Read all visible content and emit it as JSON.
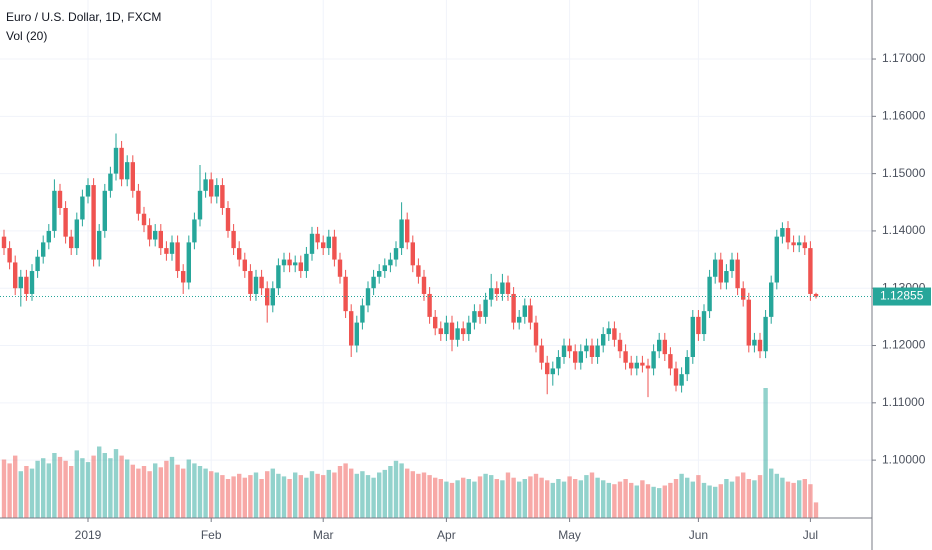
{
  "chart_data": {
    "type": "candlestick",
    "title": "Euro / U.S. Dollar, 1D, FXCM",
    "indicator": "Vol (20)",
    "categories": [
      null,
      null,
      null,
      null,
      null,
      null,
      null,
      null,
      null,
      null,
      null,
      null,
      null,
      null,
      null,
      "2019",
      null,
      null,
      null,
      null,
      null,
      null,
      null,
      null,
      null,
      null,
      null,
      null,
      null,
      null,
      null,
      null,
      null,
      null,
      null,
      null,
      null,
      "Feb",
      null,
      null,
      null,
      null,
      null,
      null,
      null,
      null,
      null,
      null,
      null,
      null,
      null,
      null,
      null,
      null,
      null,
      null,
      null,
      "Mar",
      null,
      null,
      null,
      null,
      null,
      null,
      null,
      null,
      null,
      null,
      null,
      null,
      null,
      null,
      null,
      null,
      null,
      null,
      null,
      null,
      null,
      "Apr",
      null,
      null,
      null,
      null,
      null,
      null,
      null,
      null,
      null,
      null,
      null,
      null,
      null,
      null,
      null,
      null,
      null,
      null,
      null,
      null,
      null,
      "May",
      null,
      null,
      null,
      null,
      null,
      null,
      null,
      null,
      null,
      null,
      null,
      null,
      null,
      null,
      null,
      null,
      null,
      null,
      null,
      null,
      null,
      null,
      "Jun",
      null,
      null,
      null,
      null,
      null,
      null,
      null,
      null,
      null,
      null,
      null,
      null,
      null,
      null,
      null,
      null,
      null,
      null,
      null,
      "Jul",
      null
    ],
    "open": [
      1.139,
      1.137,
      1.1345,
      1.13,
      1.132,
      1.129,
      1.133,
      1.1355,
      1.138,
      1.14,
      1.147,
      1.144,
      1.139,
      1.137,
      1.142,
      1.146,
      1.148,
      1.135,
      1.14,
      1.147,
      1.15,
      1.1545,
      1.149,
      1.152,
      1.147,
      1.143,
      1.141,
      1.1385,
      1.14,
      1.137,
      1.136,
      1.138,
      1.133,
      1.131,
      1.138,
      1.142,
      1.147,
      1.149,
      1.146,
      1.148,
      1.144,
      1.14,
      1.137,
      1.135,
      1.133,
      1.129,
      1.132,
      1.13,
      1.127,
      1.13,
      1.134,
      1.135,
      1.134,
      1.1345,
      1.133,
      1.136,
      1.1395,
      1.138,
      1.137,
      1.139,
      1.135,
      1.132,
      1.126,
      1.12,
      1.124,
      1.127,
      1.13,
      1.132,
      1.133,
      1.134,
      1.135,
      1.137,
      1.142,
      1.138,
      1.134,
      1.132,
      1.129,
      1.125,
      1.123,
      1.122,
      1.124,
      1.121,
      1.123,
      1.122,
      1.124,
      1.126,
      1.125,
      1.128,
      1.13,
      1.129,
      1.131,
      1.129,
      1.124,
      1.125,
      1.127,
      1.124,
      1.12,
      1.117,
      1.115,
      1.116,
      1.118,
      1.12,
      1.119,
      1.117,
      1.119,
      1.12,
      1.118,
      1.12,
      1.122,
      1.123,
      1.121,
      1.119,
      1.117,
      1.116,
      1.117,
      1.1165,
      1.116,
      1.119,
      1.121,
      1.1185,
      1.116,
      1.113,
      1.115,
      1.118,
      1.125,
      1.122,
      1.126,
      1.132,
      1.135,
      1.131,
      1.133,
      1.135,
      1.13,
      1.128,
      1.12,
      1.121,
      1.119,
      1.125,
      1.131,
      1.139,
      1.1405,
      1.138,
      1.1375,
      1.138,
      1.137,
      1.129
    ],
    "high": [
      1.1402,
      1.1382,
      1.1357,
      1.1332,
      1.1332,
      1.1342,
      1.1367,
      1.1392,
      1.1412,
      1.149,
      1.1482,
      1.1452,
      1.1402,
      1.1432,
      1.1472,
      1.1492,
      1.1492,
      1.1412,
      1.1482,
      1.1512,
      1.157,
      1.1557,
      1.1532,
      1.1532,
      1.1482,
      1.1442,
      1.1422,
      1.1412,
      1.1412,
      1.1382,
      1.1392,
      1.1392,
      1.1342,
      1.1392,
      1.1432,
      1.1515,
      1.1502,
      1.1502,
      1.1492,
      1.1492,
      1.1452,
      1.1412,
      1.1382,
      1.1362,
      1.1342,
      1.1332,
      1.1332,
      1.1312,
      1.1312,
      1.1352,
      1.1362,
      1.1362,
      1.1357,
      1.1357,
      1.1372,
      1.1407,
      1.1407,
      1.1392,
      1.1402,
      1.1402,
      1.1362,
      1.1332,
      1.1272,
      1.1252,
      1.1282,
      1.1312,
      1.1332,
      1.1342,
      1.1352,
      1.1362,
      1.1382,
      1.145,
      1.1432,
      1.1392,
      1.1352,
      1.1332,
      1.1302,
      1.1262,
      1.1242,
      1.1252,
      1.1252,
      1.1242,
      1.1242,
      1.1252,
      1.1272,
      1.1272,
      1.1292,
      1.1325,
      1.1312,
      1.1325,
      1.1322,
      1.1302,
      1.1262,
      1.1282,
      1.1282,
      1.1252,
      1.1212,
      1.1182,
      1.1172,
      1.1192,
      1.1212,
      1.1212,
      1.1202,
      1.1202,
      1.1212,
      1.1212,
      1.1212,
      1.1232,
      1.1242,
      1.1242,
      1.1222,
      1.1202,
      1.1182,
      1.1182,
      1.1182,
      1.1177,
      1.1202,
      1.1222,
      1.1222,
      1.1197,
      1.1172,
      1.1162,
      1.1192,
      1.1262,
      1.1262,
      1.1272,
      1.1332,
      1.1362,
      1.1362,
      1.1342,
      1.1362,
      1.1362,
      1.1312,
      1.1292,
      1.1222,
      1.1222,
      1.1262,
      1.1322,
      1.1402,
      1.1415,
      1.1417,
      1.1392,
      1.1392,
      1.1392,
      1.1382,
      1.1292
    ],
    "low": [
      1.1358,
      1.1333,
      1.1288,
      1.1268,
      1.1278,
      1.1278,
      1.1318,
      1.1343,
      1.1368,
      1.1388,
      1.1428,
      1.1378,
      1.1358,
      1.1358,
      1.1408,
      1.1448,
      1.1338,
      1.1338,
      1.1388,
      1.1458,
      1.1488,
      1.1478,
      1.1478,
      1.1458,
      1.1418,
      1.1398,
      1.1373,
      1.1373,
      1.1358,
      1.1348,
      1.1348,
      1.1318,
      1.129,
      1.1298,
      1.1368,
      1.1408,
      1.1458,
      1.1448,
      1.1448,
      1.1428,
      1.1388,
      1.1358,
      1.1338,
      1.1318,
      1.1278,
      1.1278,
      1.1288,
      1.124,
      1.1258,
      1.1288,
      1.1328,
      1.1328,
      1.1328,
      1.1318,
      1.1318,
      1.1348,
      1.1368,
      1.1358,
      1.1358,
      1.1338,
      1.1308,
      1.1248,
      1.118,
      1.1188,
      1.1228,
      1.1258,
      1.1288,
      1.1308,
      1.1318,
      1.1328,
      1.1338,
      1.1358,
      1.1368,
      1.1328,
      1.1308,
      1.1278,
      1.1238,
      1.1218,
      1.1208,
      1.1208,
      1.119,
      1.1198,
      1.1208,
      1.1208,
      1.1228,
      1.1238,
      1.1238,
      1.1268,
      1.1278,
      1.1278,
      1.1278,
      1.1228,
      1.1228,
      1.1238,
      1.1228,
      1.1188,
      1.1158,
      1.1115,
      1.113,
      1.1148,
      1.1168,
      1.1178,
      1.1158,
      1.1158,
      1.1178,
      1.1168,
      1.1168,
      1.1188,
      1.1208,
      1.1198,
      1.1178,
      1.1158,
      1.1148,
      1.1148,
      1.1153,
      1.111,
      1.1148,
      1.1178,
      1.1173,
      1.1148,
      1.112,
      1.1118,
      1.1138,
      1.1168,
      1.1208,
      1.1208,
      1.1248,
      1.1308,
      1.1298,
      1.1298,
      1.1318,
      1.1288,
      1.1268,
      1.1188,
      1.1188,
      1.1178,
      1.1178,
      1.1238,
      1.1298,
      1.1378,
      1.1368,
      1.1363,
      1.1363,
      1.1358,
      1.1278,
      1.1282
    ],
    "close": [
      1.137,
      1.1345,
      1.13,
      1.132,
      1.129,
      1.133,
      1.1355,
      1.138,
      1.14,
      1.147,
      1.144,
      1.139,
      1.137,
      1.142,
      1.146,
      1.148,
      1.135,
      1.14,
      1.147,
      1.15,
      1.1545,
      1.149,
      1.152,
      1.147,
      1.143,
      1.141,
      1.1385,
      1.14,
      1.137,
      1.136,
      1.138,
      1.133,
      1.131,
      1.138,
      1.142,
      1.147,
      1.149,
      1.146,
      1.148,
      1.144,
      1.14,
      1.137,
      1.135,
      1.133,
      1.129,
      1.132,
      1.13,
      1.127,
      1.13,
      1.134,
      1.135,
      1.134,
      1.1345,
      1.133,
      1.136,
      1.1395,
      1.138,
      1.137,
      1.139,
      1.135,
      1.132,
      1.126,
      1.12,
      1.124,
      1.127,
      1.13,
      1.132,
      1.133,
      1.134,
      1.135,
      1.137,
      1.142,
      1.138,
      1.134,
      1.132,
      1.129,
      1.125,
      1.123,
      1.122,
      1.124,
      1.121,
      1.123,
      1.122,
      1.124,
      1.126,
      1.125,
      1.128,
      1.13,
      1.129,
      1.131,
      1.129,
      1.124,
      1.125,
      1.127,
      1.124,
      1.12,
      1.117,
      1.115,
      1.116,
      1.118,
      1.12,
      1.119,
      1.117,
      1.119,
      1.12,
      1.118,
      1.12,
      1.122,
      1.123,
      1.121,
      1.119,
      1.117,
      1.116,
      1.117,
      1.1165,
      1.116,
      1.119,
      1.121,
      1.1185,
      1.116,
      1.113,
      1.115,
      1.118,
      1.125,
      1.122,
      1.126,
      1.132,
      1.135,
      1.131,
      1.133,
      1.135,
      1.13,
      1.128,
      1.12,
      1.121,
      1.119,
      1.125,
      1.131,
      1.139,
      1.1405,
      1.138,
      1.1375,
      1.138,
      1.137,
      1.129,
      1.12855
    ],
    "volume": [
      45,
      42,
      48,
      36,
      40,
      38,
      44,
      46,
      42,
      50,
      47,
      44,
      40,
      52,
      46,
      43,
      48,
      55,
      50,
      46,
      53,
      48,
      45,
      41,
      38,
      40,
      36,
      42,
      39,
      44,
      47,
      41,
      38,
      45,
      42,
      40,
      38,
      36,
      35,
      33,
      30,
      32,
      34,
      31,
      33,
      35,
      30,
      36,
      38,
      34,
      32,
      30,
      35,
      33,
      31,
      36,
      34,
      33,
      37,
      35,
      40,
      42,
      38,
      34,
      36,
      33,
      31,
      35,
      37,
      40,
      44,
      42,
      38,
      36,
      34,
      35,
      33,
      31,
      30,
      28,
      27,
      29,
      31,
      30,
      28,
      32,
      34,
      33,
      30,
      29,
      35,
      31,
      28,
      30,
      32,
      34,
      31,
      29,
      27,
      30,
      28,
      32,
      30,
      29,
      33,
      35,
      31,
      29,
      27,
      26,
      28,
      30,
      27,
      25,
      29,
      26,
      24,
      23,
      25,
      27,
      30,
      34,
      31,
      28,
      33,
      27,
      25,
      24,
      26,
      30,
      28,
      32,
      35,
      30,
      29,
      33,
      100,
      38,
      34,
      31,
      28,
      27,
      29,
      30,
      26,
      12
    ],
    "up_color": "#26a69a",
    "down_color": "#ef5350",
    "ylim": [
      1.0899,
      1.1803
    ],
    "yticks": [
      {
        "value": 1.1,
        "label": "1.10000"
      },
      {
        "value": 1.11,
        "label": "1.11000"
      },
      {
        "value": 1.12,
        "label": "1.12000"
      },
      {
        "value": 1.13,
        "label": "1.13000"
      },
      {
        "value": 1.14,
        "label": "1.14000"
      },
      {
        "value": 1.15,
        "label": "1.15000"
      },
      {
        "value": 1.16,
        "label": "1.16000"
      },
      {
        "value": 1.17,
        "label": "1.17000"
      }
    ],
    "last_price": 1.12855,
    "grid": true
  }
}
